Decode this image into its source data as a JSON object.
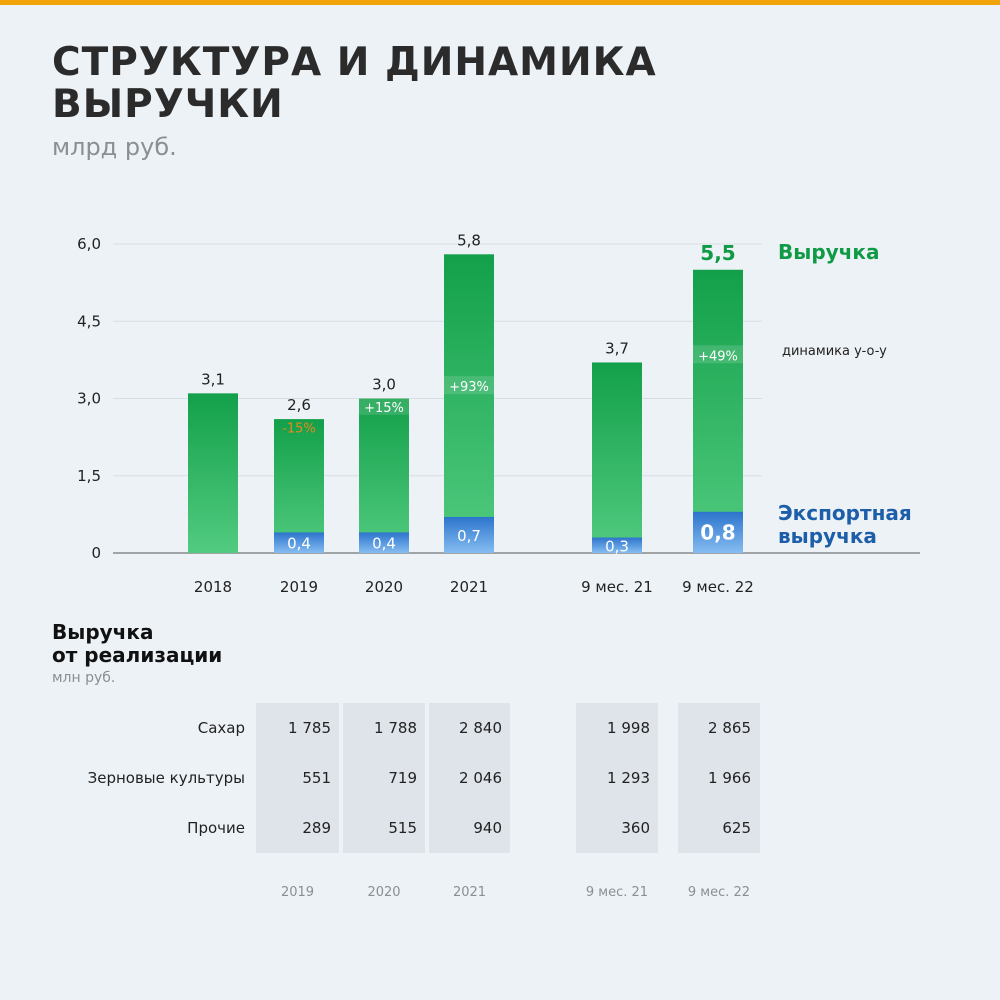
{
  "title_line1": "СТРУКТУРА И ДИНАМИКА",
  "title_line2": "ВЫРУЧКИ",
  "unit": "млрд руб.",
  "legend": {
    "revenue": "Выручка",
    "yoy": "динамика y-o-y",
    "export": "Экспортная выручка"
  },
  "colors": {
    "green": "#16a44e",
    "green_light": "#4fc97e",
    "blue": "#2f7ad4",
    "blue_light": "#7fb6ee",
    "accent_orange": "#e8891c",
    "top_bar": "#f0a30a"
  },
  "chart_data": {
    "type": "bar",
    "stacked": true,
    "categories": [
      "2018",
      "2019",
      "2020",
      "2021",
      "9 мес. 21",
      "9 мес. 22"
    ],
    "series": [
      {
        "name": "Выручка",
        "values": [
          3.1,
          2.6,
          3.0,
          5.8,
          3.7,
          5.5
        ],
        "labels": [
          "3,1",
          "2,6",
          "3,0",
          "5,8",
          "3,7",
          "5,5"
        ]
      },
      {
        "name": "Экспортная выручка",
        "values": [
          null,
          0.4,
          0.4,
          0.7,
          0.3,
          0.8
        ],
        "labels": [
          "",
          "0,4",
          "0,4",
          "0,7",
          "0,3",
          "0,8"
        ]
      }
    ],
    "yoy": [
      "",
      "-15%",
      "+15%",
      "+93%",
      "",
      "+49%"
    ],
    "yoy_y": [
      null,
      2.4,
      2.8,
      3.2,
      null,
      3.8
    ],
    "highlight_index": 5,
    "yticks": [
      0,
      1.5,
      3.0,
      4.5,
      6.0
    ],
    "ytick_labels": [
      "0",
      "1,5",
      "3,0",
      "4,5",
      "6,0"
    ],
    "ylim": [
      0,
      6.0
    ],
    "xlabel": "",
    "ylabel": "млрд руб.",
    "title": "СТРУКТУРА И ДИНАМИКА ВЫРУЧКИ"
  },
  "table": {
    "title_line1": "Выручка",
    "title_line2": "от реализации",
    "unit": "млн руб.",
    "columns": [
      "2019",
      "2020",
      "2021",
      "9 мес. 21",
      "9 мес. 22"
    ],
    "rows": [
      {
        "label": "Сахар",
        "values": [
          "1 785",
          "1 788",
          "2 840",
          "1 998",
          "2 865"
        ]
      },
      {
        "label": "Зерновые культуры",
        "values": [
          "551",
          "719",
          "2 046",
          "1 293",
          "1 966"
        ]
      },
      {
        "label": "Прочие",
        "values": [
          "289",
          "515",
          "940",
          "360",
          "625"
        ]
      }
    ]
  }
}
